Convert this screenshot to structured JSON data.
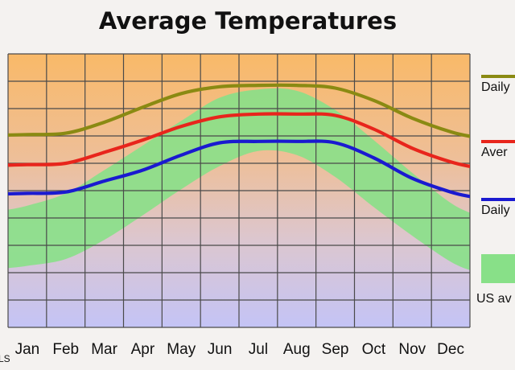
{
  "chart_data": {
    "type": "line",
    "title": "Average Temperatures",
    "categories": [
      "Jan",
      "Feb",
      "Mar",
      "Apr",
      "May",
      "Jun",
      "Jul",
      "Aug",
      "Sep",
      "Oct",
      "Nov",
      "Dec"
    ],
    "ylim": [
      0,
      100
    ],
    "grid": true,
    "legend_position": "right",
    "series": [
      {
        "name": "Daily",
        "color": "#8a8a12",
        "values": [
          70.5,
          71.0,
          75.0,
          80.5,
          85.5,
          88.0,
          88.5,
          88.5,
          87.5,
          83.0,
          76.5,
          71.5
        ]
      },
      {
        "name": "Aver",
        "color": "#e8251c",
        "values": [
          59.5,
          60.0,
          64.0,
          68.5,
          73.5,
          77.0,
          78.0,
          78.0,
          77.5,
          72.5,
          65.5,
          60.5
        ]
      },
      {
        "name": "Daily",
        "color": "#1a1ad0",
        "values": [
          49.0,
          49.5,
          53.5,
          57.5,
          63.0,
          67.5,
          68.0,
          68.0,
          67.5,
          62.0,
          54.5,
          49.5
        ]
      }
    ],
    "bands": [
      {
        "name": "US av",
        "color": "#88e088",
        "upper": [
          44.5,
          49.0,
          57.5,
          66.5,
          75.5,
          84.0,
          87.0,
          86.5,
          79.5,
          68.5,
          56.5,
          45.5
        ],
        "lower": [
          22.5,
          25.0,
          32.0,
          41.0,
          50.5,
          59.0,
          64.5,
          63.0,
          55.0,
          44.0,
          33.5,
          24.0
        ]
      }
    ],
    "legend": [
      {
        "label": "Daily",
        "kind": "line",
        "color": "#8a8a12"
      },
      {
        "label": "Aver",
        "kind": "line",
        "color": "#e8251c"
      },
      {
        "label": "Daily",
        "kind": "line",
        "color": "#1a1ad0"
      },
      {
        "label": "US av",
        "kind": "band",
        "color": "#88e088"
      }
    ],
    "background_gradient": [
      "#f9b968",
      "#eebf98",
      "#dcc6cf",
      "#c4c4f6"
    ]
  },
  "watermark": "LS"
}
